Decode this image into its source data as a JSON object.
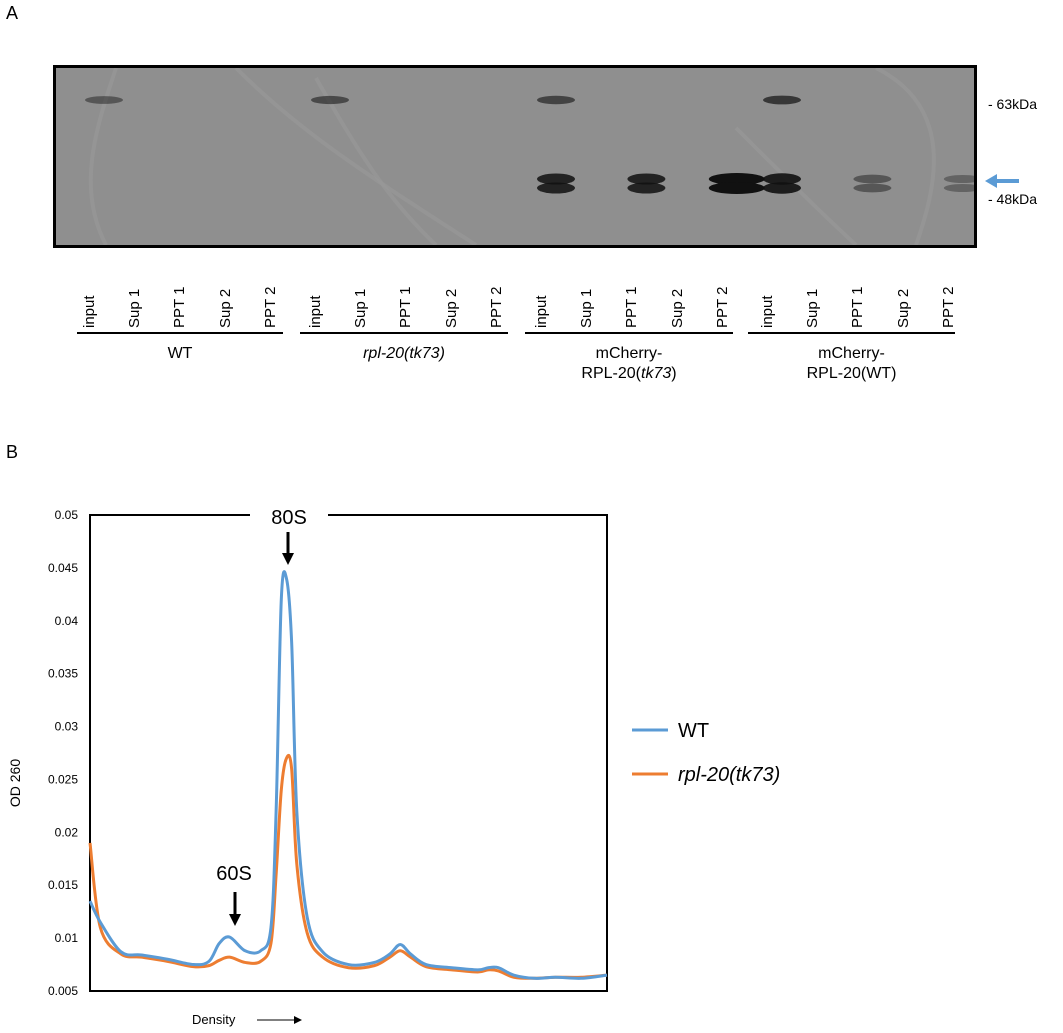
{
  "panels": {
    "a_label": "A",
    "b_label": "B"
  },
  "blot": {
    "markers": [
      "- 63kDa",
      "- 48kDa"
    ],
    "lanes": [
      "input",
      "Sup 1",
      "PPT 1",
      "Sup 2",
      "PPT 2"
    ],
    "groups": [
      {
        "label1": "WT",
        "label2": "",
        "italic1": false
      },
      {
        "label1": "rpl-20(tk73)",
        "label2": "",
        "italic1": true
      },
      {
        "label1": "mCherry-",
        "label2": "RPL-20(",
        "label2_italic": "tk73",
        "label2_tail": ")"
      },
      {
        "label1": "mCherry-",
        "label2": "RPL-20(WT)",
        "label2_italic": "",
        "label2_tail": ""
      }
    ],
    "band_intensity_63kDa": [
      0.45,
      0,
      0,
      0,
      0,
      0.55,
      0,
      0,
      0,
      0,
      0.6,
      0,
      0,
      0,
      0,
      0.7,
      0,
      0,
      0,
      0
    ],
    "band_intensity_48kDa": [
      0,
      0,
      0,
      0,
      0,
      0,
      0,
      0,
      0,
      0,
      0.85,
      0,
      0.85,
      0,
      1.0,
      0.9,
      0,
      0.45,
      0,
      0.35
    ],
    "arrow_color": "#5b9bd5"
  },
  "chart_data": {
    "type": "line",
    "title": "",
    "xlabel": "Density",
    "ylabel": "OD 260",
    "ylim": [
      0.005,
      0.05
    ],
    "yticks": [
      "0.005",
      "0.01",
      "0.015",
      "0.02",
      "0.025",
      "0.03",
      "0.035",
      "0.04",
      "0.045",
      "0.05"
    ],
    "legend_position": "right",
    "annotations": [
      "80S",
      "60S"
    ],
    "series": [
      {
        "name": "WT",
        "color": "#5b9bd5",
        "x": [
          0,
          0.02,
          0.06,
          0.1,
          0.15,
          0.2,
          0.23,
          0.25,
          0.27,
          0.3,
          0.33,
          0.35,
          0.36,
          0.37,
          0.38,
          0.39,
          0.4,
          0.42,
          0.45,
          0.5,
          0.55,
          0.58,
          0.6,
          0.62,
          0.65,
          0.7,
          0.75,
          0.77,
          0.79,
          0.82,
          0.86,
          0.9,
          0.95,
          1.0
        ],
        "y": [
          0.0135,
          0.0115,
          0.0087,
          0.0084,
          0.008,
          0.0075,
          0.0078,
          0.0095,
          0.0101,
          0.0088,
          0.0088,
          0.011,
          0.022,
          0.042,
          0.044,
          0.038,
          0.022,
          0.012,
          0.0087,
          0.0075,
          0.0077,
          0.0085,
          0.0094,
          0.0085,
          0.0075,
          0.0072,
          0.007,
          0.0072,
          0.0072,
          0.0065,
          0.0062,
          0.0063,
          0.0062,
          0.0065
        ]
      },
      {
        "name": "rpl-20(tk73)",
        "color": "#ed7d31",
        "x": [
          0,
          0.02,
          0.06,
          0.1,
          0.15,
          0.2,
          0.23,
          0.25,
          0.27,
          0.3,
          0.33,
          0.35,
          0.36,
          0.37,
          0.38,
          0.39,
          0.4,
          0.42,
          0.45,
          0.5,
          0.55,
          0.58,
          0.6,
          0.62,
          0.65,
          0.7,
          0.75,
          0.77,
          0.79,
          0.82,
          0.86,
          0.9,
          0.95,
          1.0
        ],
        "y": [
          0.019,
          0.011,
          0.0085,
          0.0082,
          0.0078,
          0.0073,
          0.0074,
          0.0079,
          0.0082,
          0.0077,
          0.0078,
          0.0095,
          0.016,
          0.024,
          0.027,
          0.026,
          0.017,
          0.0105,
          0.0082,
          0.0072,
          0.0074,
          0.0082,
          0.0088,
          0.0082,
          0.0073,
          0.007,
          0.0068,
          0.007,
          0.0069,
          0.0063,
          0.0062,
          0.0063,
          0.0063,
          0.0065
        ]
      }
    ]
  }
}
